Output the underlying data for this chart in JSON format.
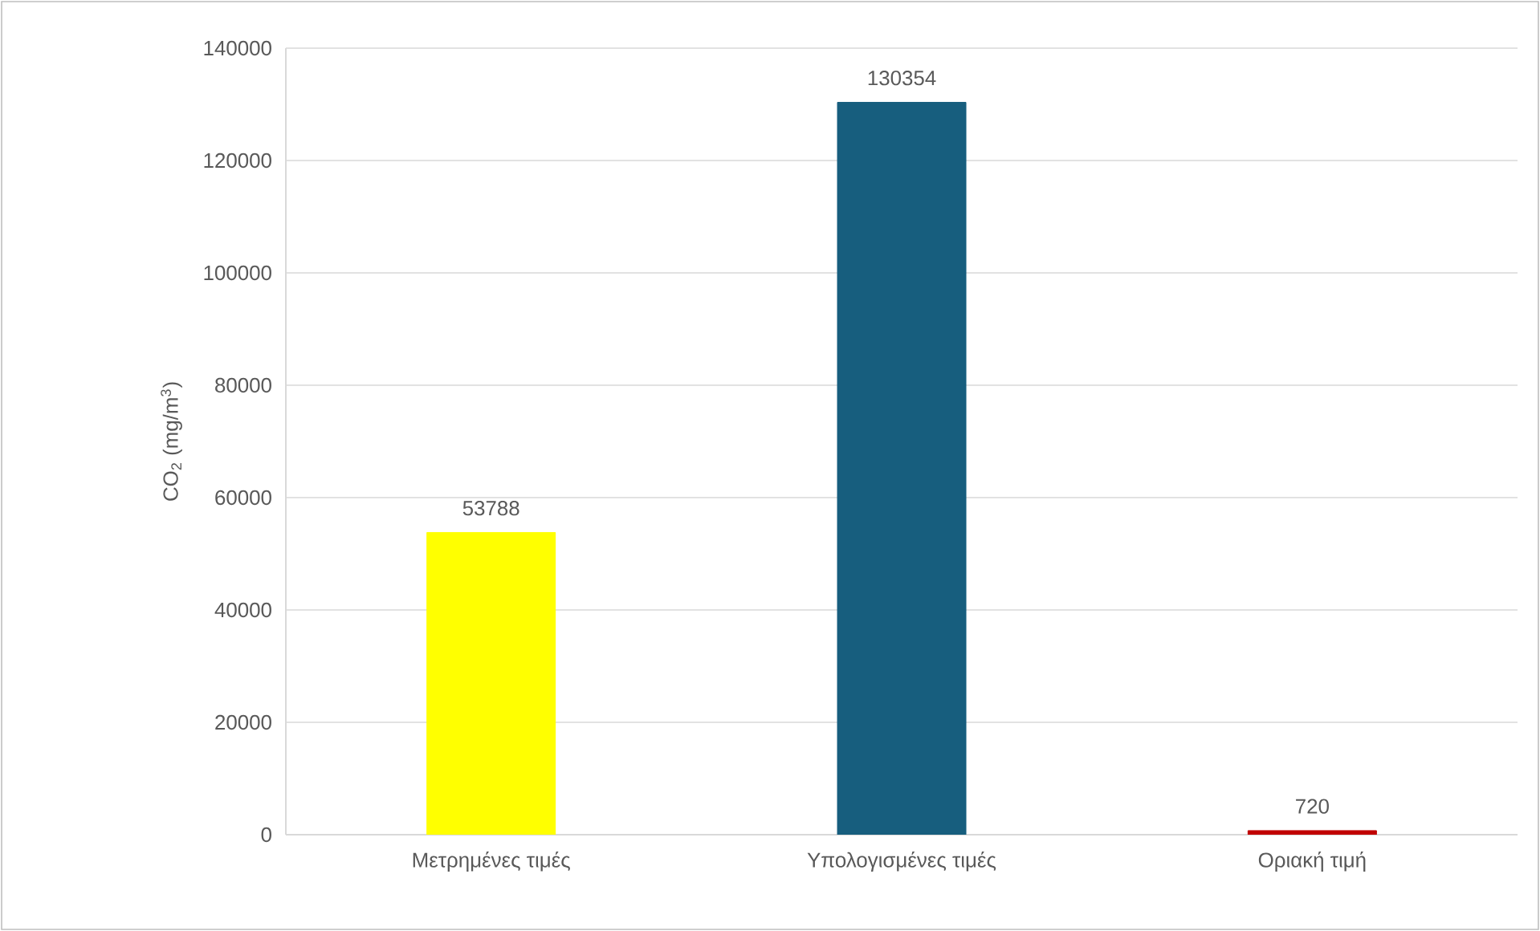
{
  "chart_data": {
    "type": "bar",
    "ylabel": "CO$_{2}$ (mg/m$^{3}$)",
    "categories": [
      "Μετρημένες τιμές",
      "Υπολογισμένες τιμές",
      "Οριακή τιμή"
    ],
    "values": [
      53788,
      130354,
      720
    ],
    "colors": [
      "#ffff00",
      "#175e7e",
      "#c00000"
    ],
    "ylim": [
      0,
      140000
    ],
    "yticks": [
      0,
      20000,
      40000,
      60000,
      80000,
      100000,
      120000,
      140000
    ],
    "grid": "y",
    "data_labels": true
  }
}
